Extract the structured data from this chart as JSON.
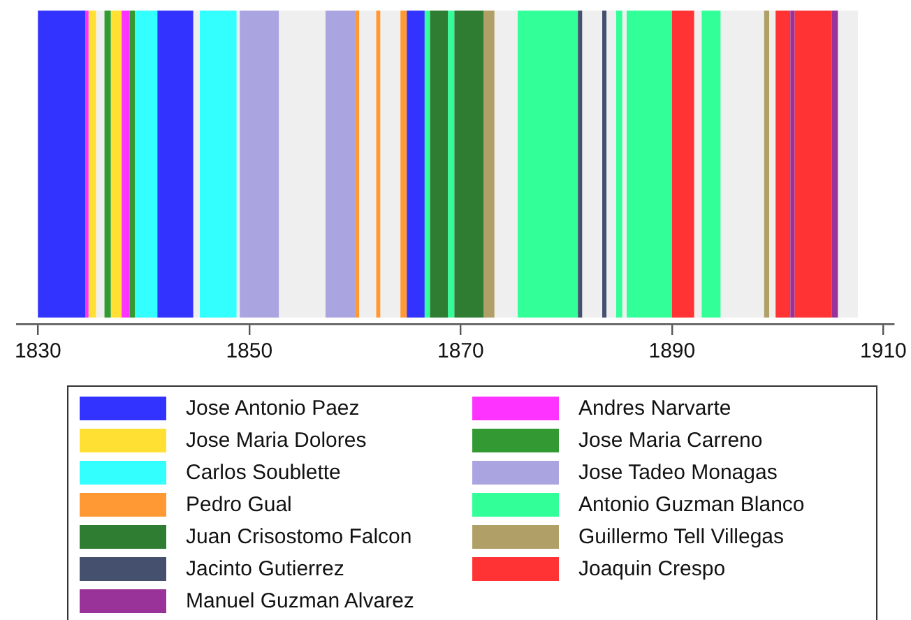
{
  "chart_data": {
    "type": "bar",
    "orientation": "horizontal",
    "categories": [
      null
    ],
    "xlim": [
      1828,
      1911
    ],
    "xticks": [
      1830,
      1850,
      1870,
      1890,
      1910
    ],
    "legend": "bottom",
    "grid": false,
    "series": [
      {
        "name": "Jose Antonio Paez",
        "color": "#3333ff",
        "values": [
          4.5
        ],
        "base": [
          1830.0
        ]
      },
      {
        "name": "Jose Maria Dolores",
        "color": "#ffe033",
        "values": [
          0.7
        ],
        "base": [
          1834.8
        ]
      },
      {
        "name": "Carlos Soublette",
        "color": "#33ffff",
        "values": [
          2.1
        ],
        "base": [
          1839.2
        ]
      },
      {
        "name": "Pedro Gual",
        "color": "#ff9933",
        "values": [
          0.4
        ],
        "base": [
          1860.0
        ]
      },
      {
        "name": "Juan Crisostomo Falcon",
        "color": "#2e7d32",
        "values": [
          1.7
        ],
        "base": [
          1867.1
        ]
      },
      {
        "name": "Jacinto Gutierrez",
        "color": "#44506e",
        "values": [
          0.4
        ],
        "base": [
          1881.1
        ]
      },
      {
        "name": "Manuel Guzman Alvarez",
        "color": "#993399",
        "values": [
          0.4
        ],
        "base": [
          1901.2
        ]
      },
      {
        "name": "Andres Narvarte",
        "color": "#ff33ff",
        "values": [
          0.3
        ],
        "base": [
          1834.5
        ]
      },
      {
        "name": "Jose Maria Carreno",
        "color": "#339933",
        "values": [
          0.6
        ],
        "base": [
          1836.3
        ]
      },
      {
        "name": "Jose Tadeo Monagas",
        "color": "#aaa4e0",
        "values": [
          3.7
        ],
        "base": [
          1849.1
        ]
      },
      {
        "name": "Antonio Guzman Blanco",
        "color": "#33ff99",
        "values": [
          0.5
        ],
        "base": [
          1866.6
        ]
      },
      {
        "name": "Guillermo Tell Villegas",
        "color": "#b0a068",
        "values": [
          1.0
        ],
        "base": [
          1872.2
        ]
      },
      {
        "name": "Joaquin Crespo",
        "color": "#ff3333",
        "values": [
          2.1
        ],
        "base": [
          1890.0
        ]
      },
      {
        "color": "#efefef",
        "values": [
          0.8
        ],
        "base": [
          1835.5
        ]
      },
      {
        "color": "#ffe033",
        "values": [
          1.0
        ],
        "base": [
          1836.9
        ]
      },
      {
        "color": "#ff33ff",
        "values": [
          0.8
        ],
        "base": [
          1837.9
        ]
      },
      {
        "color": "#339933",
        "values": [
          0.5
        ],
        "base": [
          1838.7
        ]
      },
      {
        "color": "#3333ff",
        "values": [
          3.4
        ],
        "base": [
          1841.3
        ]
      },
      {
        "color": "#efefef",
        "values": [
          0.6
        ],
        "base": [
          1844.7
        ]
      },
      {
        "color": "#33ffff",
        "values": [
          3.5
        ],
        "base": [
          1845.3
        ]
      },
      {
        "color": "#efefef",
        "values": [
          0.3
        ],
        "base": [
          1848.8
        ]
      },
      {
        "color": "#efefef",
        "values": [
          4.4
        ],
        "base": [
          1852.8
        ]
      },
      {
        "color": "#aaa4e0",
        "values": [
          2.8
        ],
        "base": [
          1857.2
        ]
      },
      {
        "color": "#efefef",
        "values": [
          1.6
        ],
        "base": [
          1860.4
        ]
      },
      {
        "color": "#ff9933",
        "values": [
          0.4
        ],
        "base": [
          1862.0
        ]
      },
      {
        "color": "#efefef",
        "values": [
          1.9
        ],
        "base": [
          1862.4
        ]
      },
      {
        "color": "#ff9933",
        "values": [
          0.6
        ],
        "base": [
          1864.3
        ]
      },
      {
        "color": "#3333ff",
        "values": [
          1.7
        ],
        "base": [
          1864.9
        ]
      },
      {
        "color": "#33ff99",
        "values": [
          0.6
        ],
        "base": [
          1868.8
        ]
      },
      {
        "color": "#2e7d32",
        "values": [
          2.8
        ],
        "base": [
          1869.4
        ]
      },
      {
        "color": "#efefef",
        "values": [
          2.2
        ],
        "base": [
          1873.2
        ]
      },
      {
        "color": "#33ff99",
        "values": [
          5.7
        ],
        "base": [
          1875.4
        ]
      },
      {
        "color": "#efefef",
        "values": [
          1.9
        ],
        "base": [
          1881.5
        ]
      },
      {
        "color": "#44506e",
        "values": [
          0.4
        ],
        "base": [
          1883.4
        ]
      },
      {
        "color": "#efefef",
        "values": [
          0.9
        ],
        "base": [
          1883.8
        ]
      },
      {
        "color": "#33ff99",
        "values": [
          0.6
        ],
        "base": [
          1884.7
        ]
      },
      {
        "color": "#efefef",
        "values": [
          0.4
        ],
        "base": [
          1885.3
        ]
      },
      {
        "color": "#33ff99",
        "values": [
          4.3
        ],
        "base": [
          1885.7
        ]
      },
      {
        "color": "#efefef",
        "values": [
          0.7
        ],
        "base": [
          1892.1
        ]
      },
      {
        "color": "#33ff99",
        "values": [
          1.8
        ],
        "base": [
          1892.8
        ]
      },
      {
        "color": "#efefef",
        "values": [
          4.1
        ],
        "base": [
          1894.6
        ]
      },
      {
        "color": "#b0a068",
        "values": [
          0.5
        ],
        "base": [
          1898.7
        ]
      },
      {
        "color": "#efefef",
        "values": [
          0.6
        ],
        "base": [
          1899.2
        ]
      },
      {
        "color": "#ff3333",
        "values": [
          1.4
        ],
        "base": [
          1899.8
        ]
      },
      {
        "color": "#ff3333",
        "values": [
          3.5
        ],
        "base": [
          1901.6
        ]
      },
      {
        "color": "#993399",
        "values": [
          0.6
        ],
        "base": [
          1905.1
        ]
      },
      {
        "color": "#efefef",
        "values": [
          1.9
        ],
        "base": [
          1905.7
        ]
      }
    ]
  }
}
